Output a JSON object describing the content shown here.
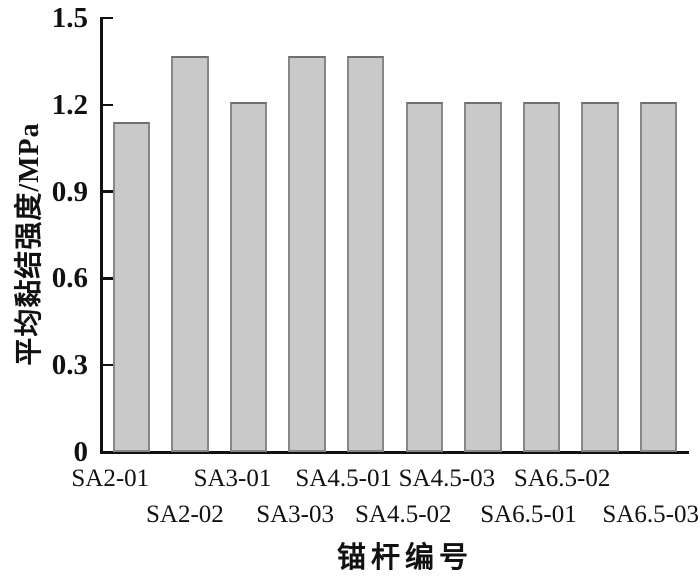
{
  "chart_data": {
    "type": "bar",
    "title": "",
    "xlabel": "锚杆编号",
    "ylabel": "平均黏结强度/MPa",
    "categories": [
      "SA2-01",
      "SA2-02",
      "SA3-01",
      "SA3-03",
      "SA4.5-01",
      "SA4.5-02",
      "SA4.5-03",
      "SA6.5-01",
      "SA6.5-02",
      "SA6.5-03"
    ],
    "values": [
      1.14,
      1.37,
      1.21,
      1.37,
      1.37,
      1.21,
      1.21,
      1.21,
      1.21,
      1.21
    ],
    "ylim": [
      0,
      1.5
    ],
    "yticks": [
      0,
      0.3,
      0.6,
      0.9,
      1.2,
      1.5
    ],
    "ytick_labels": [
      "0",
      "0.3",
      "0.6",
      "0.9",
      "1.2",
      "1.5"
    ],
    "grid": false,
    "legend": null,
    "x_label_layout": "staggered-two-rows",
    "colors": {
      "bar_fill": "#c9c9c9",
      "bar_border": "#878787",
      "bar_border_top": "#6f6f6f",
      "axis": "#111111",
      "text": "#111111",
      "background": "#ffffff"
    }
  }
}
